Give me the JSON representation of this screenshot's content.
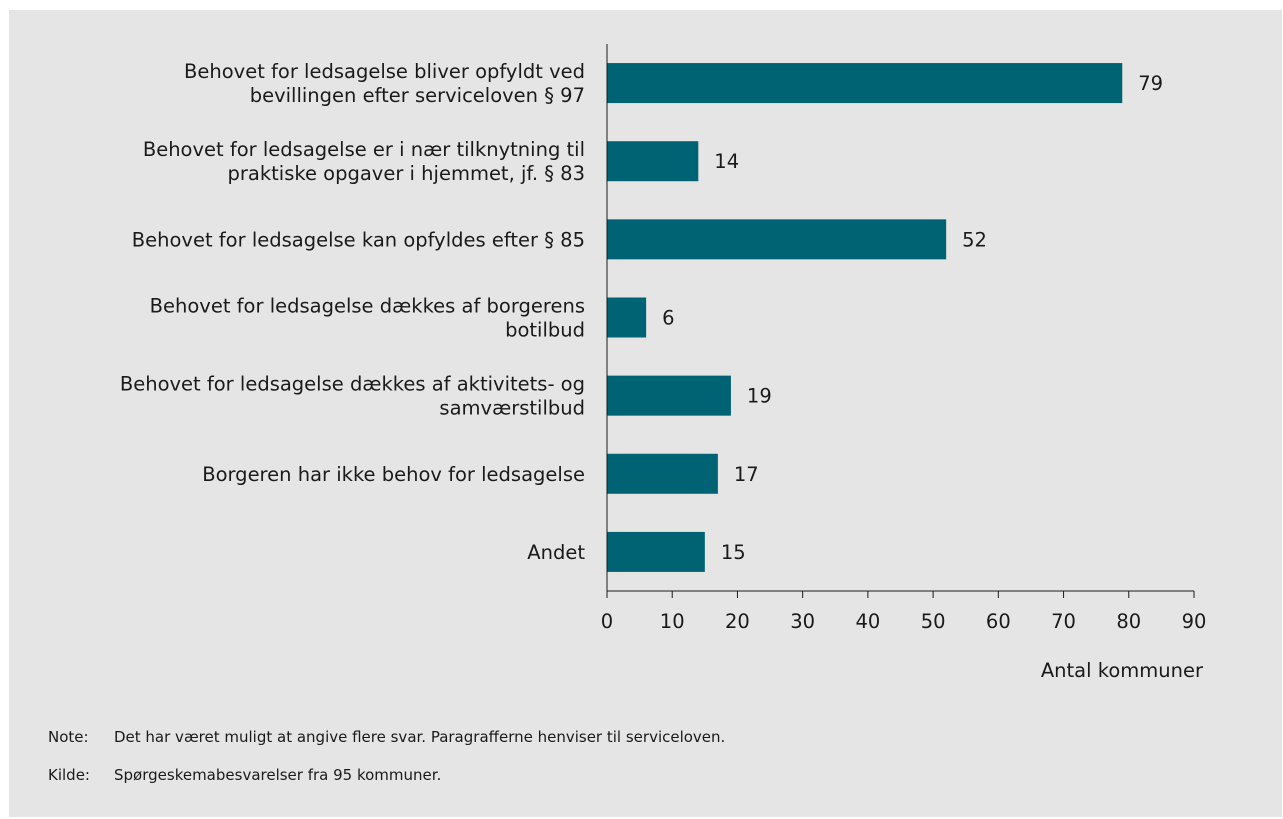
{
  "chart_data": {
    "type": "bar",
    "orientation": "horizontal",
    "categories": [
      [
        "Behovet for ledsagelse bliver opfyldt ved",
        "bevillingen efter serviceloven § 97"
      ],
      [
        "Behovet for ledsagelse er i nær tilknytning til",
        "praktiske opgaver i hjemmet, jf. § 83"
      ],
      [
        "Behovet for ledsagelse kan opfyldes efter § 85"
      ],
      [
        "Behovet for ledsagelse dækkes af borgerens",
        "botilbud"
      ],
      [
        "Behovet for ledsagelse dækkes af aktivitets- og",
        "samværstilbud"
      ],
      [
        "Borgeren har ikke behov for ledsagelse"
      ],
      [
        "Andet"
      ]
    ],
    "values": [
      79,
      14,
      52,
      6,
      19,
      17,
      15
    ],
    "xlabel": "Antal kommuner",
    "xlim": [
      0,
      90
    ],
    "xticks": [
      0,
      10,
      20,
      30,
      40,
      50,
      60,
      70,
      80,
      90
    ],
    "grid": false,
    "bar_color": "#006373"
  },
  "notes": {
    "note_prefix": "Note:",
    "note_text": "Det har været muligt at angive flere svar. Paragrafferne henviser til serviceloven.",
    "source_prefix": "Kilde:",
    "source_text": "Spørgeskemabesvarelser fra 95 kommuner."
  }
}
